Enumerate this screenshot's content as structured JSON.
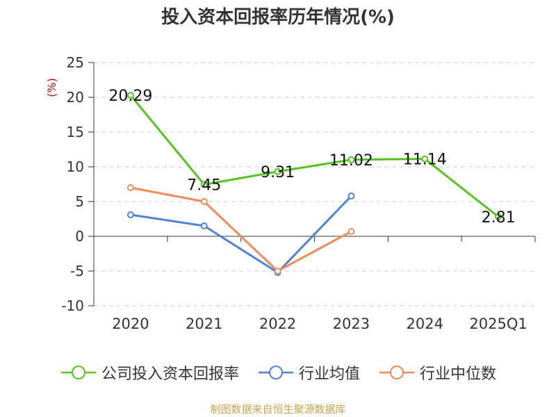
{
  "title": "投入资本回报率历年情况(%)",
  "source": "制图数据来自恒生聚源数据库",
  "chart_data": {
    "type": "line",
    "title": "投入资本回报率历年情况(%)",
    "ylabel": "(%)",
    "categories": [
      "2020",
      "2021",
      "2022",
      "2023",
      "2024",
      "2025Q1"
    ],
    "ylim": [
      -10,
      25
    ],
    "yticks": [
      -10,
      -5,
      0,
      5,
      10,
      15,
      20,
      25
    ],
    "grid": true,
    "legend_position": "bottom",
    "series": [
      {
        "name": "公司投入资本回报率",
        "color": "#52c41a",
        "values": [
          20.29,
          7.45,
          9.31,
          11.02,
          11.14,
          2.81
        ],
        "labels": [
          "20.29",
          "7.45",
          "9.31",
          "11.02",
          "11.14",
          "2.81"
        ]
      },
      {
        "name": "行业均值",
        "color": "#4e7fd9",
        "values": [
          3.1,
          1.5,
          -5.2,
          5.8,
          null,
          null
        ]
      },
      {
        "name": "行业中位数",
        "color": "#f28a57",
        "values": [
          7.0,
          5.0,
          -5.0,
          0.7,
          null,
          null
        ]
      }
    ]
  }
}
